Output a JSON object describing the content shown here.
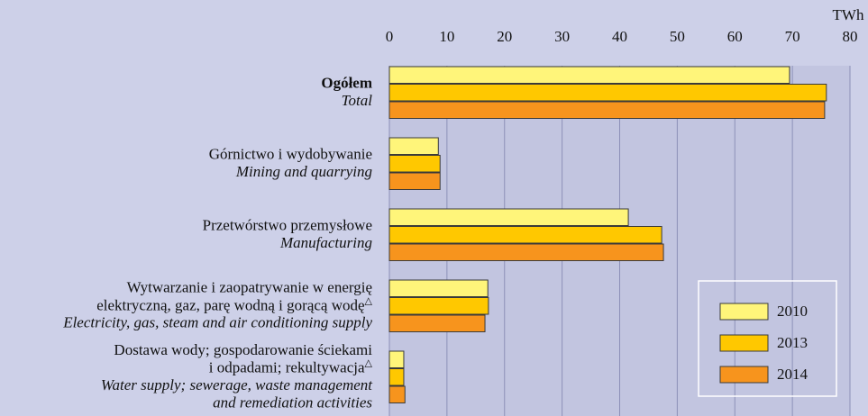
{
  "chart_data": {
    "type": "bar",
    "orientation": "horizontal",
    "x_axis_label": "TWh",
    "categories": [
      {
        "pl": [
          "Ogółem"
        ],
        "en": [
          "Total"
        ]
      },
      {
        "pl": [
          "Górnictwo i wydobywanie"
        ],
        "en": [
          "Mining and quarrying"
        ]
      },
      {
        "pl": [
          "Przetwórstwo przemysłowe"
        ],
        "en": [
          "Manufacturing"
        ]
      },
      {
        "pl": [
          "Wytwarzanie i zaopatrywanie w energię",
          "elektryczną, gaz, parę wodną i gorącą wodę△"
        ],
        "en": [
          "Electricity, gas, steam and air conditioning supply"
        ]
      },
      {
        "pl": [
          "Dostawa wody; gospodarowanie ściekami",
          "i odpadami; rekultywacja△"
        ],
        "en": [
          "Water supply; sewerage, waste management",
          "and remediation activities"
        ]
      }
    ],
    "series": [
      {
        "name": "2010",
        "color": "#fff57a",
        "values": [
          69.5,
          8.5,
          41.5,
          17.1,
          2.5
        ]
      },
      {
        "name": "2013",
        "color": "#ffc800",
        "values": [
          75.9,
          8.8,
          47.3,
          17.2,
          2.5
        ]
      },
      {
        "name": "2014",
        "color": "#f7941d",
        "values": [
          75.6,
          8.8,
          47.6,
          16.6,
          2.7
        ]
      }
    ],
    "xlim": [
      0,
      80
    ],
    "xticks": [
      0,
      10,
      20,
      30,
      40,
      50,
      60,
      70,
      80
    ],
    "grid": true,
    "legend": "lower right"
  }
}
